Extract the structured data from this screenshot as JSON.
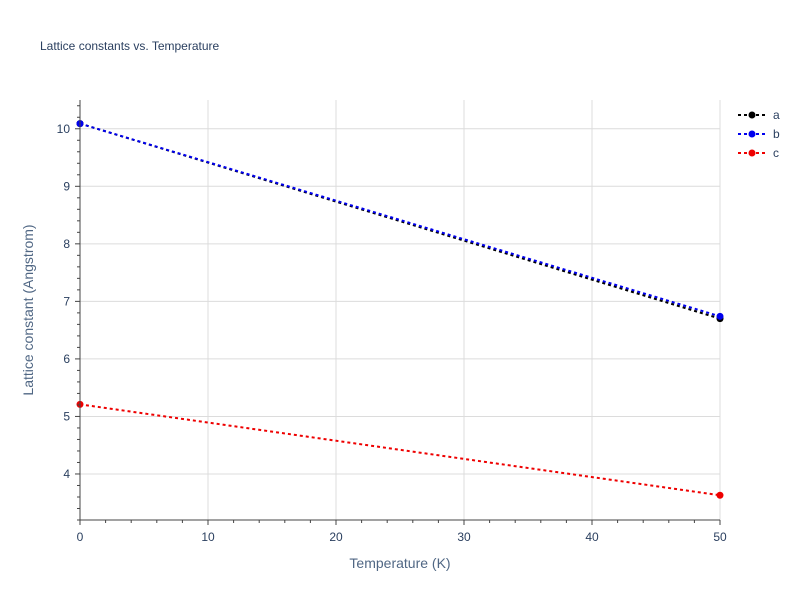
{
  "chart_data": {
    "type": "line",
    "title": "Lattice constants vs. Temperature",
    "xlabel": "Temperature (K)",
    "ylabel": "Lattice constant (Angstrom)",
    "xlim": [
      0,
      50
    ],
    "ylim": [
      3.2,
      10.5
    ],
    "x_ticks": [
      0,
      10,
      20,
      30,
      40,
      50
    ],
    "y_ticks": [
      4,
      5,
      6,
      7,
      8,
      9,
      10
    ],
    "grid": true,
    "legend_position": "top-right",
    "series": [
      {
        "name": "a",
        "color": "#000000",
        "x": [
          0,
          50
        ],
        "y": [
          10.09,
          6.7
        ]
      },
      {
        "name": "b",
        "color": "#0000ee",
        "x": [
          0,
          50
        ],
        "y": [
          10.09,
          6.74
        ]
      },
      {
        "name": "c",
        "color": "#ee0000",
        "x": [
          0,
          50
        ],
        "y": [
          5.21,
          3.63
        ]
      }
    ]
  }
}
